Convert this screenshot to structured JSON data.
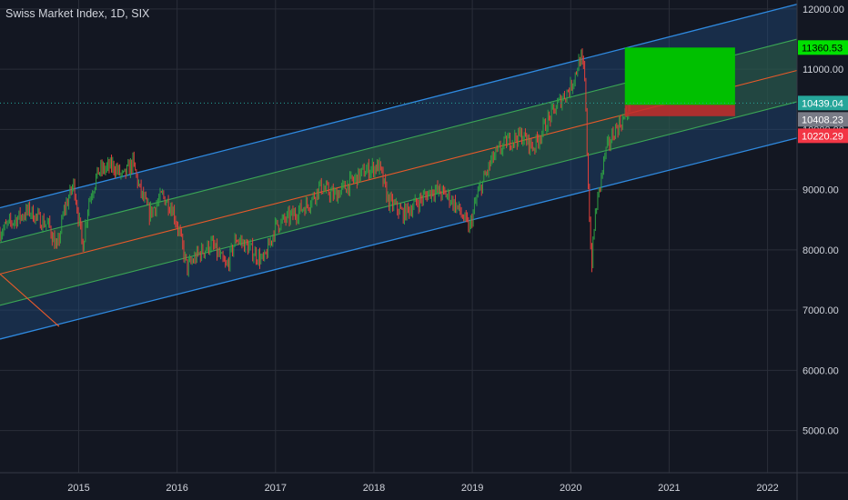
{
  "chart_data": {
    "type": "candlestick",
    "title": "Swiss Market Index, 1D, SIX",
    "x_range": [
      2014.2,
      2022.3
    ],
    "y_range": [
      4300,
      12150
    ],
    "y_ticks": [
      {
        "value": 12000,
        "label": "12000.00"
      },
      {
        "value": 11000,
        "label": "11000.00"
      },
      {
        "value": 10000,
        "label": "10000.00"
      },
      {
        "value": 9000,
        "label": "9000.00"
      },
      {
        "value": 8000,
        "label": "8000.00"
      },
      {
        "value": 7000,
        "label": "7000.00"
      },
      {
        "value": 6000,
        "label": "6000.00"
      },
      {
        "value": 5000,
        "label": "5000.00"
      }
    ],
    "x_ticks": [
      {
        "value": 2015,
        "label": "2015"
      },
      {
        "value": 2016,
        "label": "2016"
      },
      {
        "value": 2017,
        "label": "2017"
      },
      {
        "value": 2018,
        "label": "2018"
      },
      {
        "value": 2019,
        "label": "2019"
      },
      {
        "value": 2020,
        "label": "2020"
      },
      {
        "value": 2021,
        "label": "2021"
      },
      {
        "value": 2022,
        "label": "2022"
      }
    ],
    "grid": true,
    "price_path": [
      [
        2014.2,
        8300
      ],
      [
        2014.35,
        8500
      ],
      [
        2014.5,
        8650
      ],
      [
        2014.6,
        8500
      ],
      [
        2014.7,
        8400
      ],
      [
        2014.78,
        8000
      ],
      [
        2014.85,
        8650
      ],
      [
        2014.95,
        9100
      ],
      [
        2015.04,
        8050
      ],
      [
        2015.1,
        8800
      ],
      [
        2015.2,
        9300
      ],
      [
        2015.35,
        9400
      ],
      [
        2015.45,
        9200
      ],
      [
        2015.55,
        9450
      ],
      [
        2015.62,
        9000
      ],
      [
        2015.72,
        8600
      ],
      [
        2015.85,
        8900
      ],
      [
        2015.95,
        8700
      ],
      [
        2016.02,
        8300
      ],
      [
        2016.1,
        7700
      ],
      [
        2016.2,
        7900
      ],
      [
        2016.35,
        8100
      ],
      [
        2016.5,
        7700
      ],
      [
        2016.6,
        8200
      ],
      [
        2016.75,
        8000
      ],
      [
        2016.88,
        7800
      ],
      [
        2017.0,
        8400
      ],
      [
        2017.2,
        8600
      ],
      [
        2017.35,
        8800
      ],
      [
        2017.45,
        9050
      ],
      [
        2017.6,
        8900
      ],
      [
        2017.75,
        9100
      ],
      [
        2017.9,
        9300
      ],
      [
        2018.05,
        9400
      ],
      [
        2018.15,
        8800
      ],
      [
        2018.3,
        8600
      ],
      [
        2018.45,
        8800
      ],
      [
        2018.6,
        9000
      ],
      [
        2018.75,
        8900
      ],
      [
        2018.85,
        8700
      ],
      [
        2018.97,
        8350
      ],
      [
        2019.05,
        8900
      ],
      [
        2019.2,
        9500
      ],
      [
        2019.35,
        9800
      ],
      [
        2019.5,
        9900
      ],
      [
        2019.62,
        9700
      ],
      [
        2019.75,
        10100
      ],
      [
        2019.9,
        10500
      ],
      [
        2020.0,
        10700
      ],
      [
        2020.1,
        11200
      ],
      [
        2020.14,
        10900
      ],
      [
        2020.18,
        9000
      ],
      [
        2020.21,
        7700
      ],
      [
        2020.25,
        8600
      ],
      [
        2020.35,
        9600
      ],
      [
        2020.45,
        10000
      ],
      [
        2020.55,
        10200
      ],
      [
        2020.6,
        10439
      ]
    ],
    "regression_channel": {
      "start": {
        "x": 2014.2,
        "upper": 8700,
        "mid": 7600,
        "lower": 6520
      },
      "end": {
        "x": 2022.3,
        "upper": 12080,
        "mid": 10980,
        "lower": 9860
      },
      "inner_offset": 520
    },
    "position": {
      "x_start": 2020.55,
      "x_end": 2021.67,
      "entry": 10408.23,
      "target": 11360.53,
      "stop": 10220.29
    },
    "current_price": 10439.04,
    "price_labels": [
      {
        "value": 11360.53,
        "label": "11360.53",
        "bg": "#00e000",
        "color": "#000000"
      },
      {
        "value": 10439.04,
        "label": "10439.04",
        "bg": "#26a69a",
        "color": "#ffffff"
      },
      {
        "value": 10408.23,
        "label": "10408.23",
        "bg": "#787b86",
        "color": "#ffffff"
      },
      {
        "value": 10220.29,
        "label": "10220.29",
        "bg": "#f23645",
        "color": "#ffffff"
      }
    ],
    "colors": {
      "background": "#131722",
      "grid": "#2a2e39",
      "channel_outer": "#2f8ae0",
      "channel_fill": "#1e4a7a",
      "channel_inner": "#3ba655",
      "channel_inner_fill": "#2b5b3a",
      "channel_mid": "#e85a2a",
      "target_zone": "#00c000",
      "stop_zone": "#c42b2b",
      "candle_up": "#2ea043",
      "candle_down": "#e5403a"
    }
  }
}
